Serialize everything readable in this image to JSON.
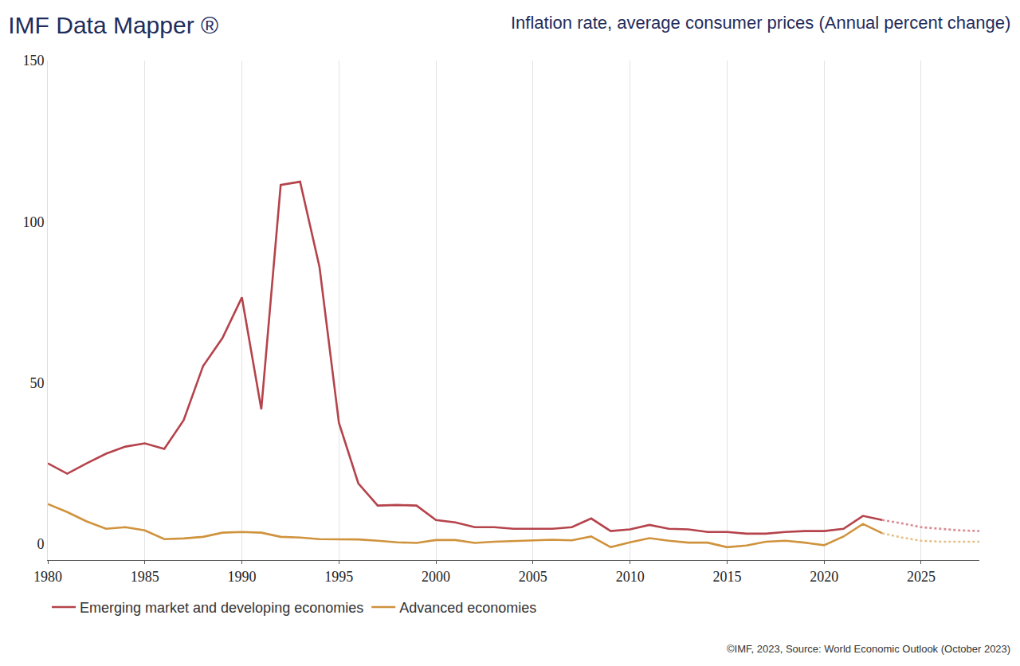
{
  "chart_data": {
    "type": "line",
    "title": "IMF Data Mapper ®",
    "subtitle": "Inflation rate, average consumer prices (Annual percent change)",
    "annotations": [
      "©IMF, 2023, Source: World Economic Outlook (October 2023)"
    ],
    "x": [
      1980,
      1981,
      1982,
      1983,
      1984,
      1985,
      1986,
      1987,
      1988,
      1989,
      1990,
      1991,
      1992,
      1993,
      1994,
      1995,
      1996,
      1997,
      1998,
      1999,
      2000,
      2001,
      2002,
      2003,
      2004,
      2005,
      2006,
      2007,
      2008,
      2009,
      2010,
      2011,
      2012,
      2013,
      2014,
      2015,
      2016,
      2017,
      2018,
      2019,
      2020,
      2021,
      2022,
      2023,
      2024,
      2025,
      2026,
      2027,
      2028
    ],
    "series": [
      {
        "name": "Emerging market and developing economies",
        "color": "#b5434b",
        "line_style": "solid",
        "values": [
          25.0,
          21.8,
          25.0,
          28.0,
          30.2,
          31.2,
          29.5,
          38.4,
          55.2,
          63.9,
          76.5,
          41.8,
          111.4,
          112.4,
          85.9,
          37.6,
          18.8,
          11.9,
          12.1,
          11.9,
          7.4,
          6.7,
          5.2,
          5.2,
          4.7,
          4.7,
          4.7,
          5.2,
          7.9,
          4.0,
          4.5,
          5.9,
          4.7,
          4.5,
          3.7,
          3.7,
          3.2,
          3.2,
          3.7,
          4.0,
          4.0,
          4.7,
          8.7,
          7.4,
          null,
          null,
          null,
          null,
          null
        ]
      },
      {
        "name": "Emerging market and developing economies",
        "color": "#d98c92",
        "line_style": "dotted",
        "values": [
          null,
          null,
          null,
          null,
          null,
          null,
          null,
          null,
          null,
          null,
          null,
          null,
          null,
          null,
          null,
          null,
          null,
          null,
          null,
          null,
          null,
          null,
          null,
          null,
          null,
          null,
          null,
          null,
          null,
          null,
          null,
          null,
          null,
          null,
          null,
          null,
          null,
          null,
          null,
          null,
          null,
          null,
          null,
          7.4,
          6.4,
          5.2,
          4.7,
          4.2,
          4.0
        ]
      },
      {
        "name": "Advanced economies",
        "color": "#d0933d",
        "line_style": "solid",
        "values": [
          12.4,
          9.9,
          7.0,
          4.7,
          5.2,
          4.2,
          1.5,
          1.7,
          2.2,
          3.5,
          3.7,
          3.5,
          2.2,
          2.0,
          1.5,
          1.5,
          1.4,
          1.0,
          0.5,
          0.3,
          1.2,
          1.2,
          0.3,
          0.7,
          0.9,
          1.2,
          1.3,
          1.1,
          2.3,
          -1.0,
          0.5,
          1.8,
          1.0,
          0.4,
          0.4,
          -1.0,
          -0.5,
          0.7,
          1.0,
          0.4,
          -0.4,
          2.3,
          6.2,
          3.3,
          null,
          null,
          null,
          null,
          null
        ]
      },
      {
        "name": "Advanced economies",
        "color": "#e6bf87",
        "line_style": "dotted",
        "values": [
          null,
          null,
          null,
          null,
          null,
          null,
          null,
          null,
          null,
          null,
          null,
          null,
          null,
          null,
          null,
          null,
          null,
          null,
          null,
          null,
          null,
          null,
          null,
          null,
          null,
          null,
          null,
          null,
          null,
          null,
          null,
          null,
          null,
          null,
          null,
          null,
          null,
          null,
          null,
          null,
          null,
          null,
          null,
          3.3,
          2.0,
          1.0,
          0.7,
          0.7,
          0.7
        ]
      }
    ],
    "xlim": [
      1980,
      2028
    ],
    "xticks": [
      1980,
      1985,
      1990,
      1995,
      2000,
      2005,
      2010,
      2015,
      2020,
      2025
    ],
    "ylim": [
      -5,
      150
    ],
    "yticks": [
      0,
      50,
      100,
      150
    ],
    "grid": true,
    "legend": "bottom left"
  }
}
